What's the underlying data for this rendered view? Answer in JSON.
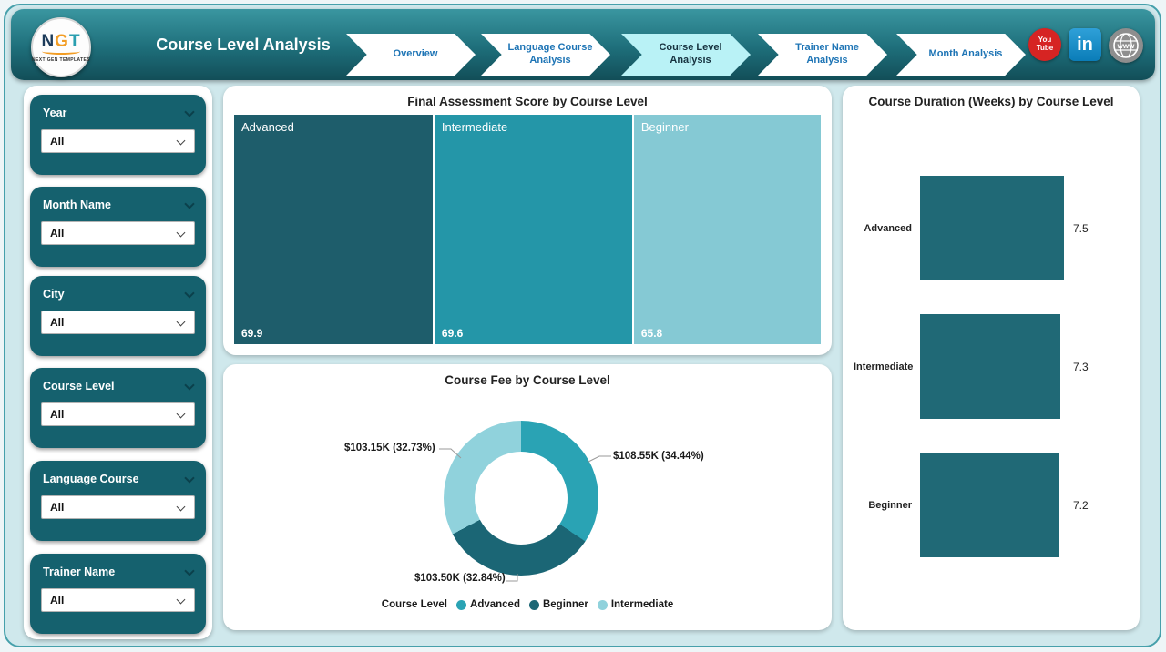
{
  "header": {
    "logo": {
      "n": "N",
      "g": "G",
      "t": "T",
      "subtext": "NEXT GEN TEMPLATES"
    },
    "title": "Course Level Analysis",
    "nav": {
      "items": [
        {
          "label": "Overview",
          "active": false
        },
        {
          "label": "Language Course Analysis",
          "active": false
        },
        {
          "label": "Course Level Analysis",
          "active": true
        },
        {
          "label": "Trainer Name Analysis",
          "active": false
        },
        {
          "label": "Month Analysis",
          "active": false
        }
      ]
    },
    "social": {
      "youtube_top": "You",
      "youtube_bottom": "Tube",
      "linkedin": "in",
      "web": "www"
    }
  },
  "filters": [
    {
      "label": "Year",
      "value": "All"
    },
    {
      "label": "Month Name",
      "value": "All"
    },
    {
      "label": "City",
      "value": "All"
    },
    {
      "label": "Course Level",
      "value": "All"
    },
    {
      "label": "Language Course",
      "value": "All"
    },
    {
      "label": "Trainer Name",
      "value": "All"
    }
  ],
  "colors": {
    "header_teal": "#1e6e7a",
    "canvas_bg": "#cfe8ec",
    "filter_card": "#15616e",
    "active_tab": "#b9f2f6",
    "nav_text": "#1d74b5"
  },
  "chart_data": [
    {
      "type": "treemap",
      "title": "Final Assessment Score by Course Level",
      "categories": [
        "Advanced",
        "Intermediate",
        "Beginner"
      ],
      "values": [
        69.9,
        69.6,
        65.8
      ],
      "value_labels": [
        "69.9",
        "69.6",
        "65.8"
      ],
      "colors": [
        "#1e5d6b",
        "#2496a8",
        "#85c9d4"
      ]
    },
    {
      "type": "pie",
      "title": "Course Fee by Course Level",
      "legend_title": "Course Level",
      "legend_position": "bottom",
      "slices": [
        {
          "label": "Advanced",
          "value_label": "$108.55K (34.44%)",
          "value_k": 108.55,
          "pct": 34.44,
          "color": "#2aa3b4"
        },
        {
          "label": "Beginner",
          "value_label": "$103.50K (32.84%)",
          "value_k": 103.5,
          "pct": 32.84,
          "color": "#1b6675"
        },
        {
          "label": "Intermediate",
          "value_label": "$103.15K (32.73%)",
          "value_k": 103.15,
          "pct": 32.73,
          "color": "#90d2dc"
        }
      ]
    },
    {
      "type": "bar",
      "title": "Course Duration (Weeks) by Course Level",
      "orientation": "horizontal",
      "categories": [
        "Advanced",
        "Intermediate",
        "Beginner"
      ],
      "values": [
        7.5,
        7.3,
        7.2
      ],
      "value_labels": [
        "7.5",
        "7.3",
        "7.2"
      ],
      "bar_color": "#206976",
      "xlim": [
        0,
        7.5
      ],
      "grid": false
    }
  ]
}
